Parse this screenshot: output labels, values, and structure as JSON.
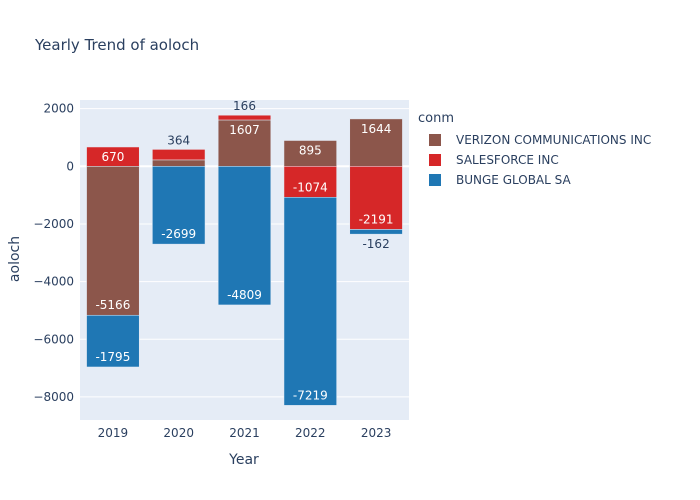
{
  "chart_data": {
    "type": "bar",
    "barmode": "relative",
    "title": "Yearly Trend of aoloch",
    "xlabel": "Year",
    "ylabel": "aoloch",
    "categories": [
      "2019",
      "2020",
      "2021",
      "2022",
      "2023"
    ],
    "ylim": [
      -8800,
      2300
    ],
    "yticks": [
      2000,
      0,
      -2000,
      -4000,
      -6000,
      -8000
    ],
    "ytick_labels": [
      "2000",
      "0",
      "−2000",
      "−4000",
      "−6000",
      "−8000"
    ],
    "legend": {
      "title": "conm",
      "placement": "right"
    },
    "series": [
      {
        "name": "VERIZON COMMUNICATIONS INC",
        "color": "#8c564b",
        "values": [
          -5166,
          222,
          1607,
          895,
          1644
        ],
        "labels": [
          "-5166",
          "",
          "1607",
          "895",
          "1644"
        ]
      },
      {
        "name": "SALESFORCE INC",
        "color": "#d62728",
        "values": [
          670,
          364,
          166,
          -1074,
          -2191
        ],
        "labels": [
          "670",
          "364",
          "166",
          "-1074",
          "-2191"
        ]
      },
      {
        "name": "BUNGE GLOBAL SA",
        "color": "#1f77b4",
        "values": [
          -1795,
          -2699,
          -4809,
          -7219,
          -162
        ],
        "labels": [
          "-1795",
          "-2699",
          "-4809",
          "-7219",
          "-162"
        ]
      }
    ],
    "grid": true
  }
}
